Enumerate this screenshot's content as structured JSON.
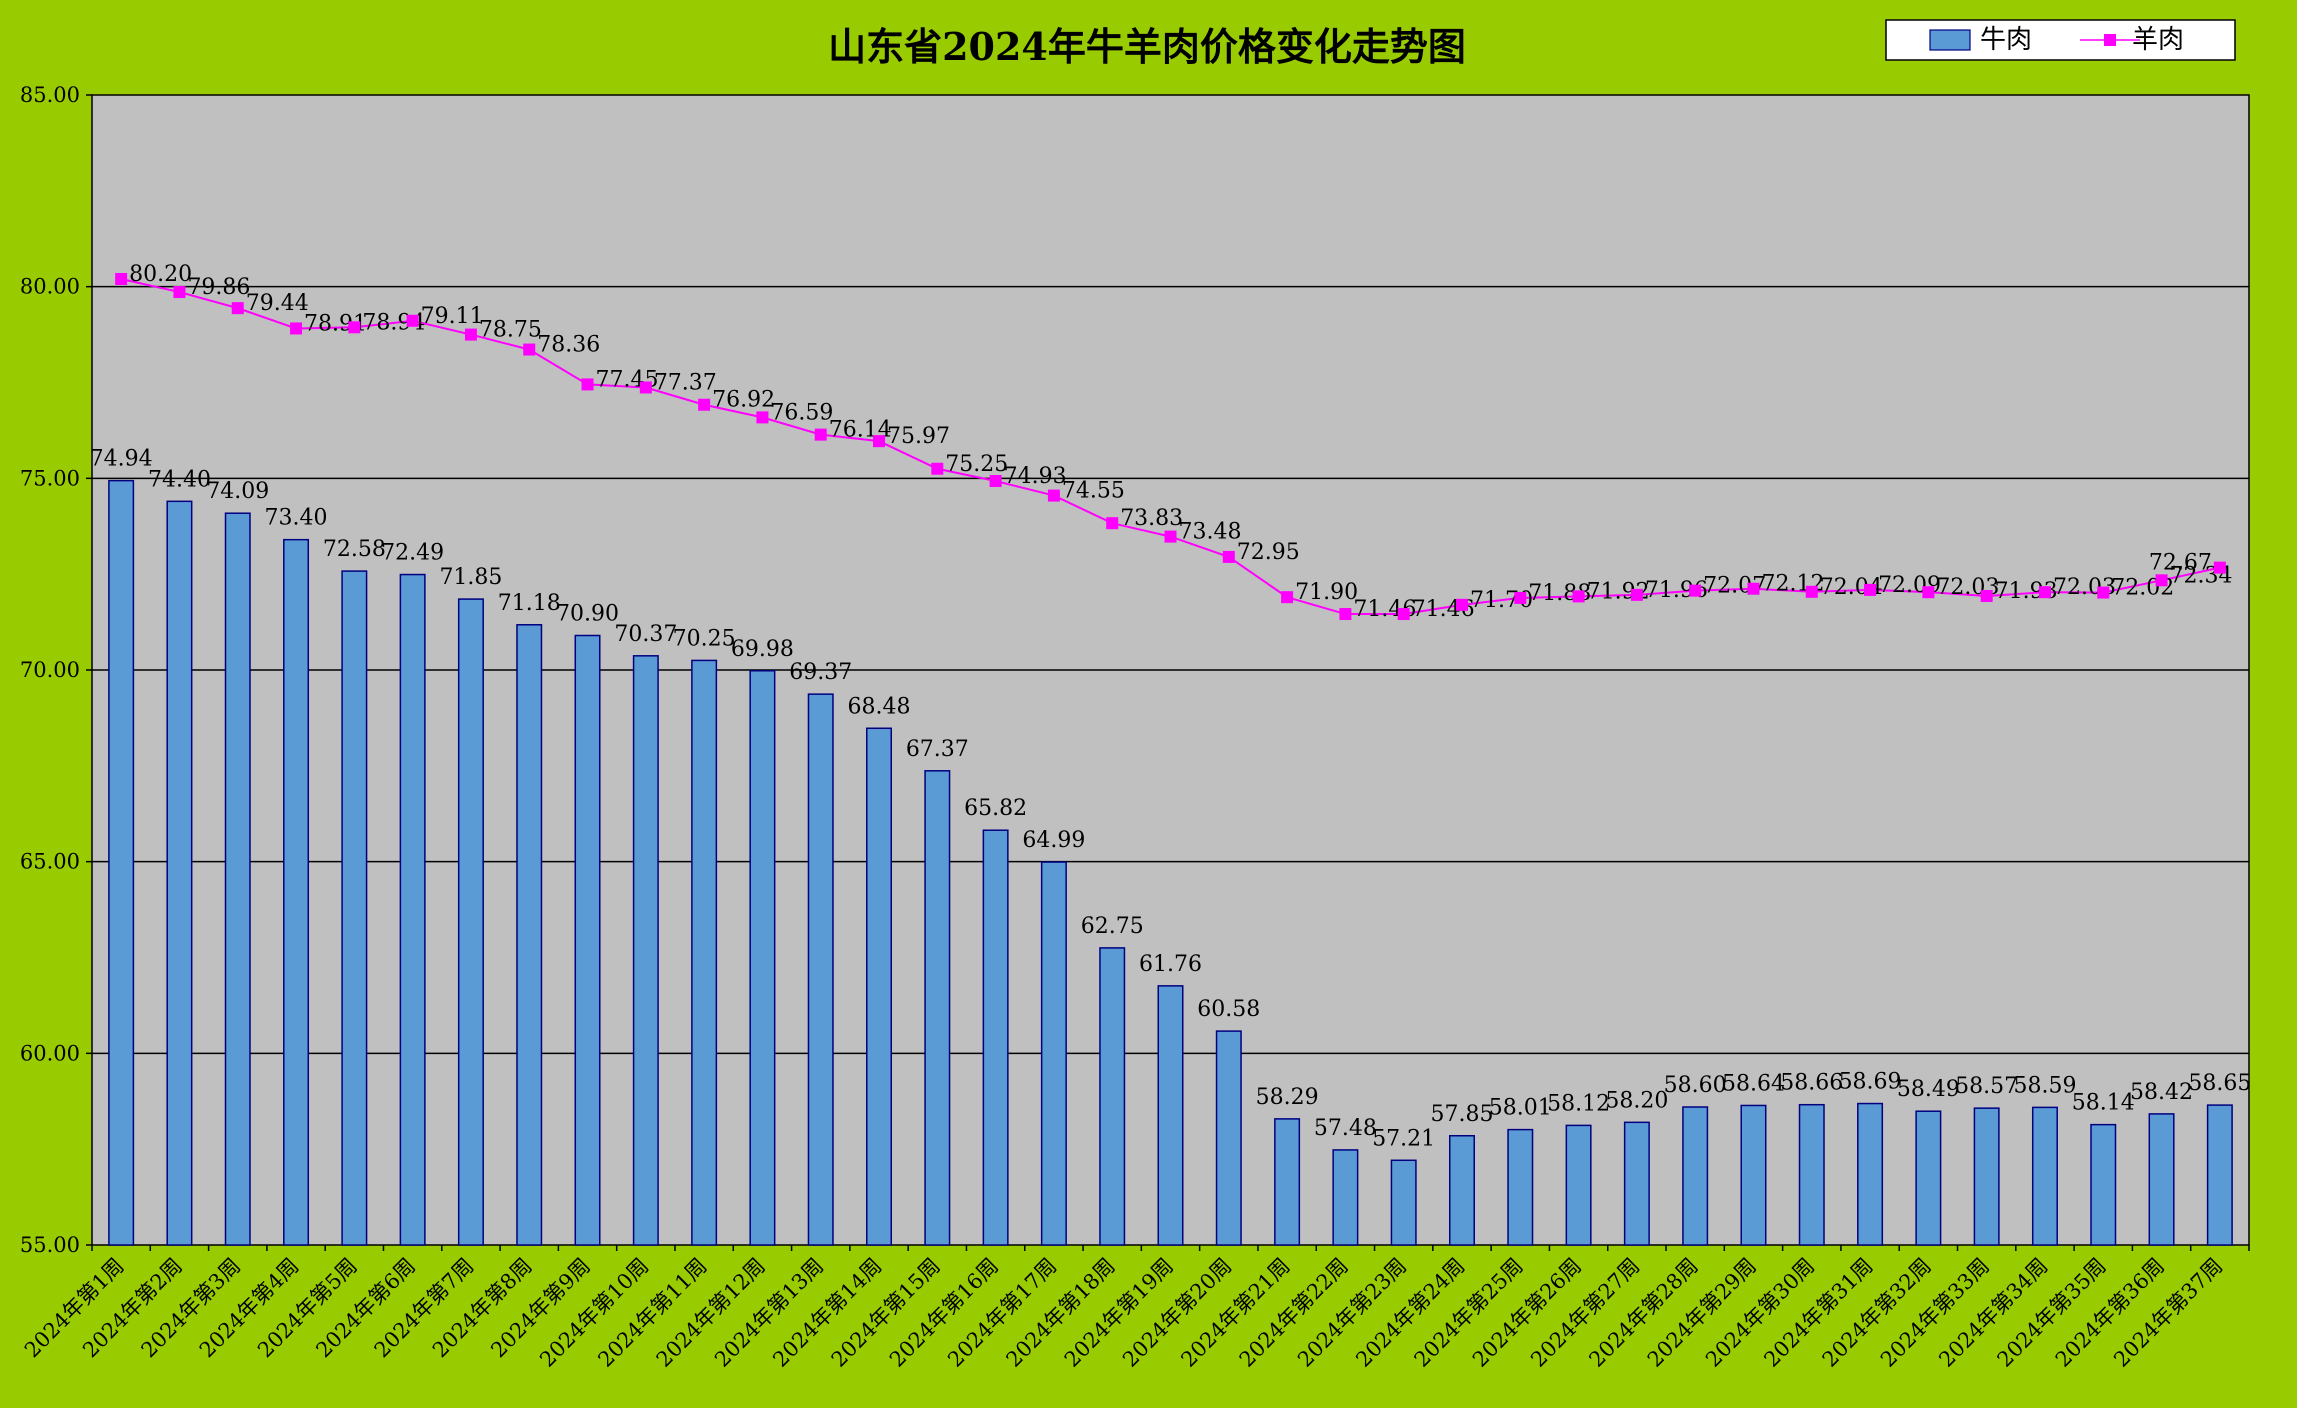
{
  "chart_data": {
    "type": "bar",
    "title": "山东省2024年牛羊肉价格变化走势图",
    "categories": [
      "2024年第1周",
      "2024年第2周",
      "2024年第3周",
      "2024年第4周",
      "2024年第5周",
      "2024年第6周",
      "2024年第7周",
      "2024年第8周",
      "2024年第9周",
      "2024年第10周",
      "2024年第11周",
      "2024年第12周",
      "2024年第13周",
      "2024年第14周",
      "2024年第15周",
      "2024年第16周",
      "2024年第17周",
      "2024年第18周",
      "2024年第19周",
      "2024年第20周",
      "2024年第21周",
      "2024年第22周",
      "2024年第23周",
      "2024年第24周",
      "2024年第25周",
      "2024年第26周",
      "2024年第27周",
      "2024年第28周",
      "2024年第29周",
      "2024年第30周",
      "2024年第31周",
      "2024年第32周",
      "2024年第33周",
      "2024年第34周",
      "2024年第35周",
      "2024年第36周",
      "2024年第37周"
    ],
    "series": [
      {
        "name": "牛肉",
        "type": "bar",
        "color": "#5b9bd5",
        "values": [
          74.94,
          74.4,
          74.09,
          73.4,
          72.58,
          72.49,
          71.85,
          71.18,
          70.9,
          70.37,
          70.25,
          69.98,
          69.37,
          68.48,
          67.37,
          65.82,
          64.99,
          62.75,
          61.76,
          60.58,
          58.29,
          57.48,
          57.21,
          57.85,
          58.01,
          58.12,
          58.2,
          58.6,
          58.64,
          58.66,
          58.69,
          58.49,
          58.57,
          58.59,
          58.14,
          58.42,
          58.65
        ]
      },
      {
        "name": "羊肉",
        "type": "line",
        "color": "#ff00ff",
        "values": [
          80.2,
          79.86,
          79.44,
          78.91,
          78.94,
          79.11,
          78.75,
          78.36,
          77.45,
          77.37,
          76.92,
          76.59,
          76.14,
          75.97,
          75.25,
          74.93,
          74.55,
          73.83,
          73.48,
          72.95,
          71.9,
          71.46,
          71.46,
          71.7,
          71.88,
          71.92,
          71.96,
          72.07,
          72.12,
          72.04,
          72.09,
          72.03,
          71.93,
          72.03,
          72.02,
          72.34,
          72.67
        ]
      }
    ],
    "ylim": [
      55,
      85
    ],
    "yticks": [
      "55.00",
      "60.00",
      "65.00",
      "70.00",
      "75.00",
      "80.00",
      "85.00"
    ],
    "grid": true,
    "legend_position": "top-right",
    "plot_background": "#c0c0c0",
    "page_background": "#99cc00"
  }
}
